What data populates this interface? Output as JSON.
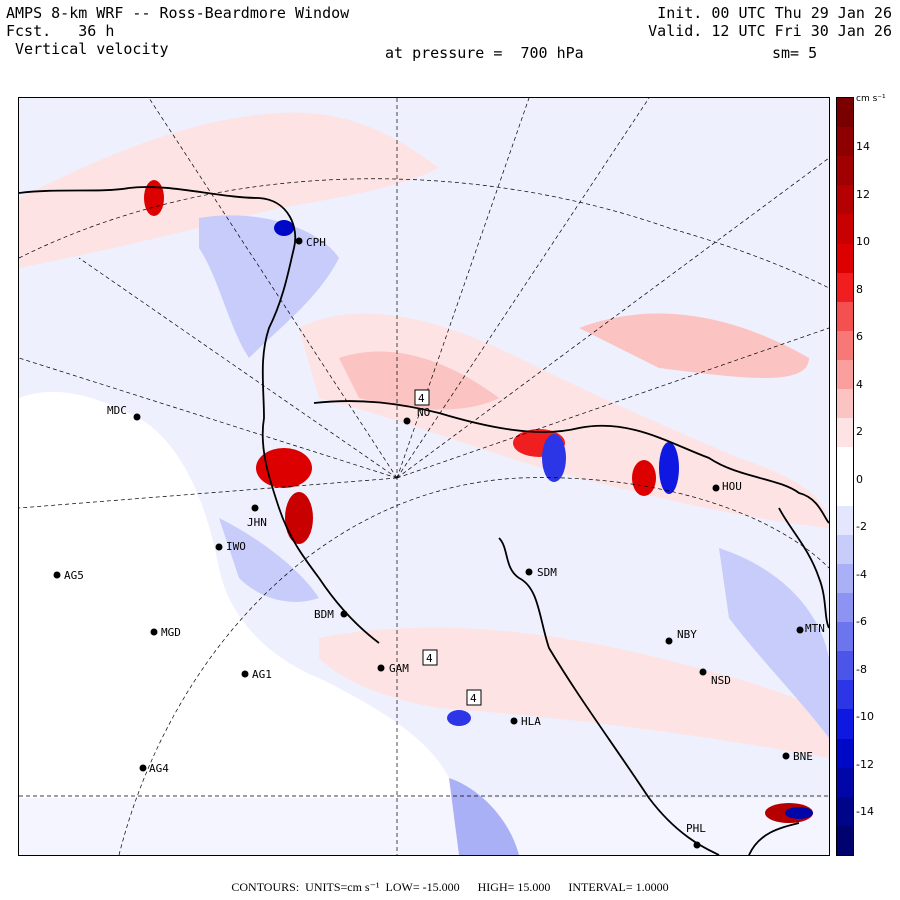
{
  "header": {
    "title_line": "AMPS 8-km WRF -- Ross-Beardmore Window",
    "fcst_label": "Fcst.",
    "fcst_value": "36 h",
    "field_name": "Vertical velocity",
    "init_line": "Init. 00 UTC Thu 29 Jan 26",
    "valid_line": "Valid. 12 UTC Fri 30 Jan 26",
    "pressure_line": "at pressure =  700 hPa",
    "smoothing": "sm= 5"
  },
  "colorbar": {
    "units": "cm s⁻¹",
    "ticks": [
      "14",
      "12",
      "10",
      "8",
      "6",
      "4",
      "2",
      "0",
      "-2",
      "-4",
      "-6",
      "-8",
      "-10",
      "-12",
      "-14"
    ],
    "colors": [
      "#7a0000",
      "#8e0000",
      "#a00000",
      "#b40000",
      "#c80000",
      "#dc0000",
      "#f01e1e",
      "#f55050",
      "#f87878",
      "#fa9e9e",
      "#fcc3c3",
      "#fde3e3",
      "#ffffff",
      "#ffffff",
      "#e3e6fd",
      "#c8ccfa",
      "#aab0f6",
      "#8c93f2",
      "#6c74ee",
      "#4c55ea",
      "#2c36e6",
      "#0f18e0",
      "#0008c8",
      "#0006a8",
      "#000488",
      "#000270"
    ]
  },
  "stations": [
    {
      "id": "CPH",
      "label": "CPH"
    },
    {
      "id": "MDC",
      "label": "MDC"
    },
    {
      "id": "NO",
      "label": "NO"
    },
    {
      "id": "HOU",
      "label": "HOU"
    },
    {
      "id": "JHN",
      "label": "JHN"
    },
    {
      "id": "IWO",
      "label": "IWO"
    },
    {
      "id": "AG5",
      "label": "AG5"
    },
    {
      "id": "SDM",
      "label": "SDM"
    },
    {
      "id": "BDM",
      "label": "BDM"
    },
    {
      "id": "MGD",
      "label": "MGD"
    },
    {
      "id": "NBY",
      "label": "NBY"
    },
    {
      "id": "MTN",
      "label": "MTN"
    },
    {
      "id": "GAM",
      "label": "GAM"
    },
    {
      "id": "AG1",
      "label": "AG1"
    },
    {
      "id": "NSD",
      "label": "NSD"
    },
    {
      "id": "HLA",
      "label": "HLA"
    },
    {
      "id": "BNE",
      "label": "BNE"
    },
    {
      "id": "AG4",
      "label": "AG4"
    },
    {
      "id": "PHL",
      "label": "PHL"
    }
  ],
  "markers": [
    "4",
    "4",
    "4"
  ],
  "footer": {
    "contours_label": "CONTOURS:",
    "units_label": "UNITS=cm s⁻¹",
    "low_label": "LOW= -15.000",
    "high_label": "HIGH= 15.000",
    "interval_label": "INTERVAL= 1.0000"
  }
}
